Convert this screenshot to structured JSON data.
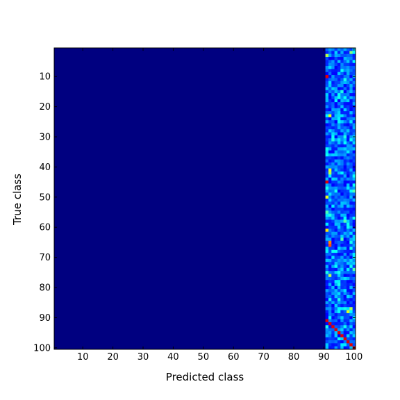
{
  "chart_data": {
    "type": "heatmap",
    "title": "",
    "xlabel": "Predicted class",
    "ylabel": "True class",
    "xlim": [
      1,
      100
    ],
    "ylim": [
      1,
      100
    ],
    "x_ticks": [
      10,
      20,
      30,
      40,
      50,
      60,
      70,
      80,
      90,
      100
    ],
    "y_ticks": [
      10,
      20,
      30,
      40,
      50,
      60,
      70,
      80,
      90,
      100
    ],
    "colormap": "jet",
    "background_value": 0,
    "value_range": [
      0,
      1
    ],
    "nonzero_predicted_classes": [
      91,
      100
    ],
    "diagonal_true_classes": [
      91,
      100
    ],
    "cells": [
      {
        "true": 3,
        "pred": 91,
        "value": 0.55
      },
      {
        "true": 10,
        "pred": 91,
        "value": 0.9
      },
      {
        "true": 23,
        "pred": 92,
        "value": 0.6
      },
      {
        "true": 35,
        "pred": 91,
        "value": 0.35
      },
      {
        "true": 41,
        "pred": 92,
        "value": 0.6
      },
      {
        "true": 42,
        "pred": 92,
        "value": 0.55
      },
      {
        "true": 45,
        "pred": 91,
        "value": 0.9
      },
      {
        "true": 50,
        "pred": 91,
        "value": 0.6
      },
      {
        "true": 55,
        "pred": 91,
        "value": 0.45
      },
      {
        "true": 61,
        "pred": 91,
        "value": 0.65
      },
      {
        "true": 65,
        "pred": 92,
        "value": 0.75
      },
      {
        "true": 66,
        "pred": 92,
        "value": 0.8
      },
      {
        "true": 75,
        "pred": 91,
        "value": 0.4
      },
      {
        "true": 76,
        "pred": 92,
        "value": 0.55
      },
      {
        "true": 87,
        "pred": 99,
        "value": 0.55
      },
      {
        "true": 88,
        "pred": 98,
        "value": 0.6
      },
      {
        "true": 2,
        "pred": 99,
        "value": 0.5
      },
      {
        "true": 15,
        "pred": 96,
        "value": 0.4
      },
      {
        "true": 30,
        "pred": 97,
        "value": 0.4
      },
      {
        "true": 48,
        "pred": 100,
        "value": 0.45
      },
      {
        "true": 58,
        "pred": 97,
        "value": 0.45
      },
      {
        "true": 64,
        "pred": 96,
        "value": 0.45
      },
      {
        "true": 74,
        "pred": 100,
        "value": 0.45
      },
      {
        "true": 90,
        "pred": 100,
        "value": 0.35
      },
      {
        "true": 91,
        "pred": 91,
        "value": 0.9
      },
      {
        "true": 92,
        "pred": 92,
        "value": 0.9
      },
      {
        "true": 93,
        "pred": 93,
        "value": 0.9
      },
      {
        "true": 94,
        "pred": 94,
        "value": 0.9
      },
      {
        "true": 95,
        "pred": 95,
        "value": 0.9
      },
      {
        "true": 96,
        "pred": 96,
        "value": 0.9
      },
      {
        "true": 97,
        "pred": 97,
        "value": 0.9
      },
      {
        "true": 98,
        "pred": 98,
        "value": 0.9
      },
      {
        "true": 99,
        "pred": 99,
        "value": 0.9
      },
      {
        "true": 100,
        "pred": 100,
        "value": 0.9
      }
    ]
  }
}
